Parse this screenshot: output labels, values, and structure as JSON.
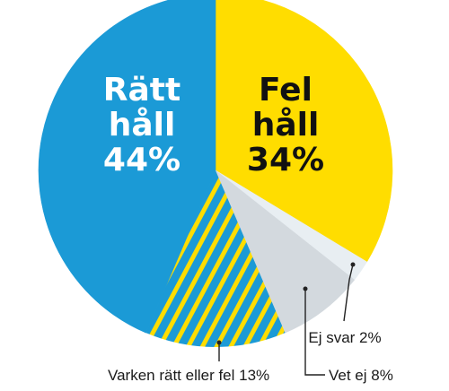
{
  "chart_data": {
    "type": "pie",
    "title": "",
    "slices": [
      {
        "label": "Fel håll",
        "value": 34,
        "display": "34%",
        "color": "#FFDD00",
        "pattern": "none"
      },
      {
        "label": "Ej svar",
        "value": 2,
        "display": "2%",
        "color": "#E8EEF2",
        "pattern": "none"
      },
      {
        "label": "Vet ej",
        "value": 8,
        "display": "8%",
        "color": "#D3D9DE",
        "pattern": "none"
      },
      {
        "label": "Varken rätt eller fel",
        "value": 13,
        "display": "13%",
        "color": "#1B9AD6",
        "pattern": "diagonal-stripes",
        "stripe_color": "#FFDD00"
      },
      {
        "label": "Rätt håll",
        "value": 44,
        "display": "44%",
        "color": "#1B9AD6",
        "pattern": "none"
      }
    ],
    "start_angle_deg": 0,
    "direction": "clockwise",
    "legend": "none"
  },
  "labels": {
    "right_line1": "Rätt",
    "right_line2": "håll",
    "right_value": "44%",
    "wrong_line1": "Fel",
    "wrong_line2": "håll",
    "wrong_value": "34%",
    "ej_svar": "Ej svar 2%",
    "vet_ej": "Vet ej 8%",
    "varken": "Varken rätt eller fel 13%"
  },
  "colors": {
    "text_on_blue": "#FFFFFF",
    "text_on_yellow": "#111111",
    "leader_line": "#222222"
  }
}
